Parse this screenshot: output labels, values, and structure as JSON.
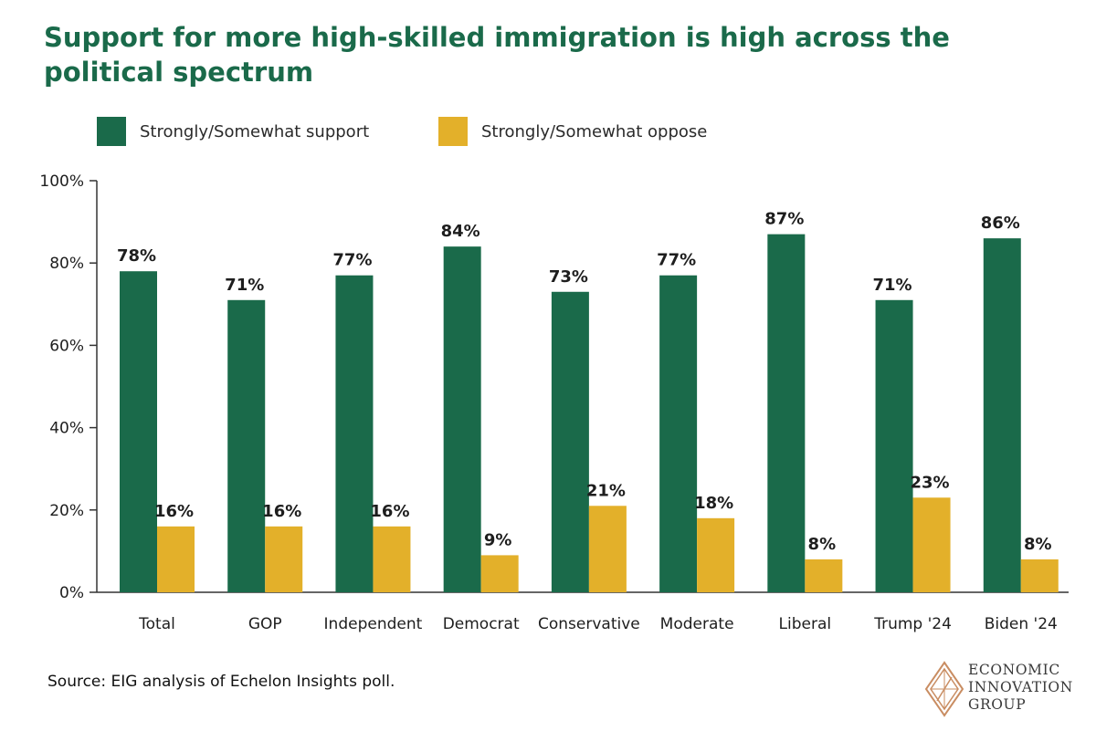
{
  "title": "Support for more high-skilled immigration is high across the political spectrum",
  "source": "Source: EIG analysis of Echelon Insights poll.",
  "logo": {
    "lines": [
      "ECONOMIC",
      "INNOVATION",
      "GROUP"
    ]
  },
  "colors": {
    "support": "#1a6a4a",
    "oppose": "#e3b02a",
    "title": "#1a6a4a",
    "axis": "#333333"
  },
  "chart_data": {
    "type": "bar",
    "title": "Support for more high-skilled immigration is high across the political spectrum",
    "categories": [
      "Total",
      "GOP",
      "Independent",
      "Democrat",
      "Conservative",
      "Moderate",
      "Liberal",
      "Trump '24",
      "Biden '24"
    ],
    "series": [
      {
        "name": "Strongly/Somewhat support",
        "values": [
          78,
          71,
          77,
          84,
          73,
          77,
          87,
          71,
          86
        ]
      },
      {
        "name": "Strongly/Somewhat oppose",
        "values": [
          16,
          16,
          16,
          9,
          21,
          18,
          8,
          23,
          8
        ]
      }
    ],
    "ylim": [
      0,
      100
    ],
    "yticks": [
      0,
      20,
      40,
      60,
      80,
      100
    ],
    "ytick_labels": [
      "0%",
      "20%",
      "40%",
      "60%",
      "80%",
      "100%"
    ],
    "value_suffix": "%",
    "xlabel": "",
    "ylabel": "",
    "legend_position": "top-left",
    "grid": false
  }
}
